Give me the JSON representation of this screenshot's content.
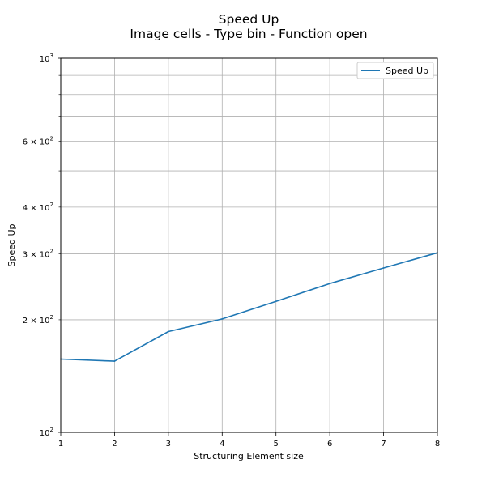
{
  "chart_data": {
    "type": "line",
    "title": "Speed Up",
    "subtitle": "Image cells - Type bin - Function open",
    "xlabel": "Structuring Element size",
    "ylabel": "Speed Up",
    "x": [
      1,
      2,
      3,
      4,
      5,
      6,
      7,
      8
    ],
    "series": [
      {
        "name": "Speed Up",
        "color": "#1f77b4",
        "values": [
          157,
          155,
          186,
          201,
          224,
          250,
          275,
          302
        ]
      }
    ],
    "xlim": [
      1,
      8
    ],
    "ylim": [
      100,
      1000
    ],
    "yscale": "log",
    "grid": true,
    "legend_position": "top-right",
    "x_tick_labels": [
      "1",
      "2",
      "3",
      "4",
      "5",
      "6",
      "7",
      "8"
    ],
    "y_major_ticks": [
      {
        "value": 100,
        "base": "10",
        "exp": "2"
      },
      {
        "value": 1000,
        "base": "10",
        "exp": "3"
      }
    ],
    "y_minor_ticks": [
      {
        "value": 200,
        "mult": "2",
        "base": "10",
        "exp": "2"
      },
      {
        "value": 300,
        "mult": "3",
        "base": "10",
        "exp": "2"
      },
      {
        "value": 400,
        "mult": "4",
        "base": "10",
        "exp": "2"
      },
      {
        "value": 500,
        "mult": "",
        "base": "",
        "exp": ""
      },
      {
        "value": 600,
        "mult": "6",
        "base": "10",
        "exp": "2"
      },
      {
        "value": 700,
        "mult": "",
        "base": "",
        "exp": ""
      },
      {
        "value": 800,
        "mult": "",
        "base": "",
        "exp": ""
      },
      {
        "value": 900,
        "mult": "",
        "base": "",
        "exp": ""
      }
    ]
  }
}
